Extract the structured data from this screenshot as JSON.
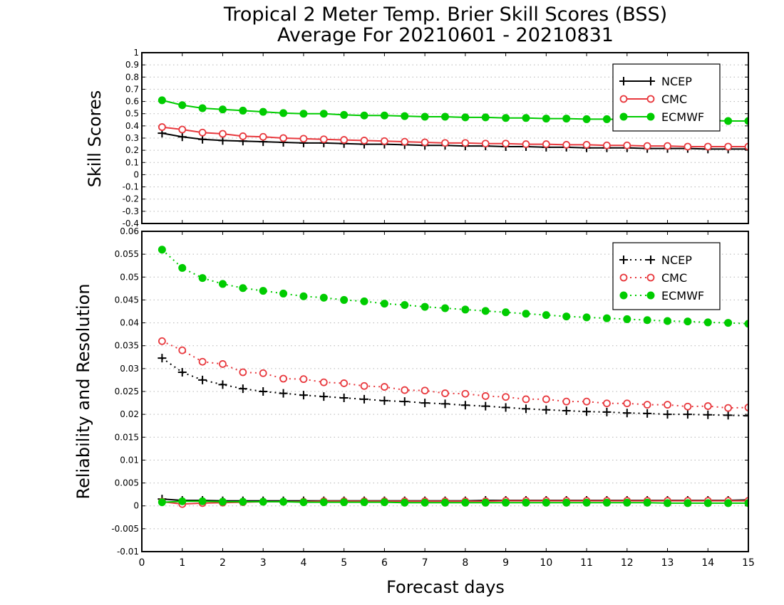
{
  "chart_data": [
    {
      "type": "line",
      "title": "Tropical 2 Meter Temp. Brier Skill Scores (BSS)",
      "subtitle": "Average For 20210601 - 20210831",
      "xlabel": "",
      "ylabel": "Skill Scores",
      "xlim": [
        0,
        15
      ],
      "ylim": [
        -0.4,
        1
      ],
      "yticks": [
        "1",
        "0.9",
        "0.8",
        "0.7",
        "0.6",
        "0.5",
        "0.4",
        "0.3",
        "0.2",
        "0.1",
        "0",
        "-0.1",
        "-0.2",
        "-0.3",
        "-0.4"
      ],
      "grid": true,
      "legend_position": "top-right",
      "x": [
        0.5,
        1,
        1.5,
        2,
        2.5,
        3,
        3.5,
        4,
        4.5,
        5,
        5.5,
        6,
        6.5,
        7,
        7.5,
        8,
        8.5,
        9,
        9.5,
        10,
        10.5,
        11,
        11.5,
        12,
        12.5,
        13,
        13.5,
        14,
        14.5,
        15
      ],
      "series": [
        {
          "name": "NCEP",
          "color": "#000000",
          "marker": "plus",
          "line": "solid",
          "values": [
            0.34,
            0.31,
            0.29,
            0.28,
            0.275,
            0.27,
            0.265,
            0.26,
            0.26,
            0.255,
            0.25,
            0.25,
            0.245,
            0.24,
            0.24,
            0.235,
            0.235,
            0.23,
            0.23,
            0.225,
            0.225,
            0.22,
            0.22,
            0.22,
            0.215,
            0.215,
            0.215,
            0.21,
            0.21,
            0.21
          ]
        },
        {
          "name": "CMC",
          "color": "#e8383d",
          "marker": "open-circle",
          "line": "solid",
          "values": [
            0.39,
            0.37,
            0.345,
            0.335,
            0.315,
            0.31,
            0.3,
            0.295,
            0.29,
            0.285,
            0.28,
            0.275,
            0.27,
            0.265,
            0.26,
            0.26,
            0.255,
            0.255,
            0.25,
            0.25,
            0.245,
            0.245,
            0.24,
            0.24,
            0.235,
            0.235,
            0.23,
            0.23,
            0.23,
            0.23
          ]
        },
        {
          "name": "ECMWF",
          "color": "#00cc00",
          "marker": "filled-circle",
          "line": "solid",
          "values": [
            0.61,
            0.57,
            0.545,
            0.535,
            0.525,
            0.515,
            0.505,
            0.5,
            0.5,
            0.49,
            0.485,
            0.485,
            0.48,
            0.475,
            0.475,
            0.47,
            0.47,
            0.465,
            0.465,
            0.46,
            0.46,
            0.455,
            0.455,
            0.45,
            0.45,
            0.45,
            0.445,
            0.445,
            0.44,
            0.44
          ]
        }
      ]
    },
    {
      "type": "line",
      "title": "",
      "xlabel": "Forecast days",
      "ylabel": "Reliability and Resolution",
      "xlim": [
        0,
        15
      ],
      "xticks": [
        "0",
        "1",
        "2",
        "3",
        "4",
        "5",
        "6",
        "7",
        "8",
        "9",
        "10",
        "11",
        "12",
        "13",
        "14",
        "15"
      ],
      "ylim": [
        -0.01,
        0.06
      ],
      "yticks": [
        "0.06",
        "0.055",
        "0.05",
        "0.045",
        "0.04",
        "0.035",
        "0.03",
        "0.025",
        "0.02",
        "0.015",
        "0.01",
        "0.005",
        "0",
        "-0.005",
        "-0.01"
      ],
      "grid": true,
      "legend_position": "top-right",
      "x": [
        0.5,
        1,
        1.5,
        2,
        2.5,
        3,
        3.5,
        4,
        4.5,
        5,
        5.5,
        6,
        6.5,
        7,
        7.5,
        8,
        8.5,
        9,
        9.5,
        10,
        10.5,
        11,
        11.5,
        12,
        12.5,
        13,
        13.5,
        14,
        14.5,
        15
      ],
      "series": [
        {
          "name": "NCEP",
          "color": "#000000",
          "marker": "plus",
          "line": "dotted",
          "values": [
            0.0323,
            0.0292,
            0.0275,
            0.0265,
            0.0256,
            0.025,
            0.0246,
            0.0242,
            0.0239,
            0.0236,
            0.0233,
            0.023,
            0.0228,
            0.0225,
            0.0223,
            0.022,
            0.0218,
            0.0215,
            0.0212,
            0.021,
            0.0208,
            0.0206,
            0.0205,
            0.0203,
            0.0202,
            0.02,
            0.02,
            0.0199,
            0.0198,
            0.0197
          ]
        },
        {
          "name": "CMC",
          "color": "#e8383d",
          "marker": "open-circle",
          "line": "dotted",
          "values": [
            0.036,
            0.034,
            0.0315,
            0.031,
            0.0292,
            0.029,
            0.0278,
            0.0277,
            0.027,
            0.0268,
            0.0262,
            0.026,
            0.0253,
            0.0252,
            0.0246,
            0.0245,
            0.024,
            0.0238,
            0.0233,
            0.0233,
            0.0228,
            0.0228,
            0.0224,
            0.0224,
            0.0221,
            0.0221,
            0.0217,
            0.0218,
            0.0214,
            0.0215
          ]
        },
        {
          "name": "ECMWF",
          "color": "#00cc00",
          "marker": "filled-circle",
          "line": "dotted",
          "values": [
            0.056,
            0.052,
            0.0498,
            0.0485,
            0.0476,
            0.047,
            0.0464,
            0.0458,
            0.0455,
            0.045,
            0.0447,
            0.0442,
            0.0439,
            0.0435,
            0.0432,
            0.0429,
            0.0426,
            0.0423,
            0.042,
            0.0417,
            0.0414,
            0.0412,
            0.041,
            0.0408,
            0.0406,
            0.0404,
            0.0403,
            0.0401,
            0.04,
            0.0398
          ]
        },
        {
          "name": "NCEP",
          "color": "#000000",
          "marker": "plus",
          "line": "solid",
          "values": [
            0.0015,
            0.0012,
            0.0012,
            0.0011,
            0.0011,
            0.0011,
            0.0011,
            0.0011,
            0.0011,
            0.0011,
            0.0011,
            0.0011,
            0.0011,
            0.0011,
            0.0011,
            0.0011,
            0.0012,
            0.0012,
            0.0012,
            0.0012,
            0.0012,
            0.0012,
            0.0012,
            0.0012,
            0.0012,
            0.0012,
            0.0012,
            0.0012,
            0.0012,
            0.0013
          ]
        },
        {
          "name": "CMC",
          "color": "#e8383d",
          "marker": "open-circle",
          "line": "solid",
          "values": [
            0.0009,
            0.0004,
            0.0006,
            0.0007,
            0.0008,
            0.0009,
            0.0009,
            0.0009,
            0.001,
            0.001,
            0.001,
            0.001,
            0.001,
            0.001,
            0.001,
            0.001,
            0.001,
            0.0011,
            0.0011,
            0.0011,
            0.0011,
            0.0011,
            0.0011,
            0.0011,
            0.0011,
            0.0011,
            0.0011,
            0.0011,
            0.0011,
            0.0011
          ]
        },
        {
          "name": "ECMWF",
          "color": "#00cc00",
          "marker": "filled-circle",
          "line": "solid",
          "values": [
            0.0008,
            0.001,
            0.001,
            0.0009,
            0.0009,
            0.0009,
            0.0009,
            0.0008,
            0.0008,
            0.0008,
            0.0008,
            0.0008,
            0.0007,
            0.0007,
            0.0007,
            0.0007,
            0.0007,
            0.0007,
            0.0007,
            0.0007,
            0.0007,
            0.0007,
            0.0007,
            0.0007,
            0.0007,
            0.0006,
            0.0006,
            0.0006,
            0.0006,
            0.0006
          ]
        }
      ]
    }
  ]
}
